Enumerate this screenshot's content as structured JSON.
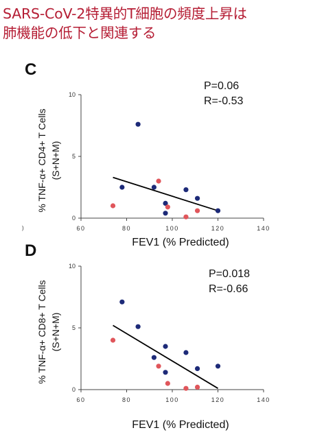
{
  "headline": {
    "line1": "SARS-CoV-2特異的T細胞の頻度上昇は",
    "line2": "肺機能の低下と関連する"
  },
  "stray_mark": ")",
  "colors": {
    "navy": "#1d2a78",
    "red": "#e0565b",
    "axis": "#444444",
    "text": "#111111"
  },
  "chart_data": [
    {
      "panel": "C",
      "type": "scatter",
      "xlabel": "FEV1 (% Predicted)",
      "ylabel_line1": "% TNF-α+ CD4+ T Cells",
      "ylabel_line2": "(S+N+M)",
      "xlim": [
        60,
        140
      ],
      "ylim": [
        0,
        10
      ],
      "xticks": [
        "60",
        "80",
        "100",
        "120",
        "140"
      ],
      "yticks": [
        "0",
        "5",
        "10"
      ],
      "stats_p": "P=0.06",
      "stats_r": "R=-0.53",
      "series": [
        {
          "color": "navy",
          "points": [
            [
              85,
              7.6
            ],
            [
              78,
              2.5
            ],
            [
              92,
              2.5
            ],
            [
              97,
              1.2
            ],
            [
              106,
              2.3
            ],
            [
              111,
              1.6
            ],
            [
              97,
              0.4
            ],
            [
              120,
              0.6
            ]
          ]
        },
        {
          "color": "red",
          "points": [
            [
              74,
              1.0
            ],
            [
              94,
              3.0
            ],
            [
              98,
              0.9
            ],
            [
              106,
              0.1
            ],
            [
              111,
              0.6
            ]
          ]
        }
      ],
      "trendline": [
        [
          74,
          3.3
        ],
        [
          120,
          0.6
        ]
      ]
    },
    {
      "panel": "D",
      "type": "scatter",
      "xlabel": "FEV1 (% Predicted)",
      "ylabel_line1": "% TNF-α+ CD8+ T Cells",
      "ylabel_line2": "(S+N+M)",
      "xlim": [
        60,
        140
      ],
      "ylim": [
        0,
        10
      ],
      "xticks": [
        "60",
        "80",
        "100",
        "120",
        "140"
      ],
      "yticks": [
        "0",
        "5",
        "10"
      ],
      "stats_p": "P=0.018",
      "stats_r": "R=-0.66",
      "series": [
        {
          "color": "navy",
          "points": [
            [
              78,
              7.1
            ],
            [
              85,
              5.1
            ],
            [
              97,
              3.5
            ],
            [
              106,
              3.0
            ],
            [
              92,
              2.6
            ],
            [
              97,
              1.4
            ],
            [
              111,
              1.7
            ],
            [
              120,
              1.9
            ]
          ]
        },
        {
          "color": "red",
          "points": [
            [
              74,
              4.0
            ],
            [
              94,
              1.9
            ],
            [
              98,
              0.5
            ],
            [
              106,
              0.1
            ],
            [
              111,
              0.2
            ]
          ]
        }
      ],
      "trendline": [
        [
          74,
          5.2
        ],
        [
          120,
          0.1
        ]
      ]
    }
  ]
}
